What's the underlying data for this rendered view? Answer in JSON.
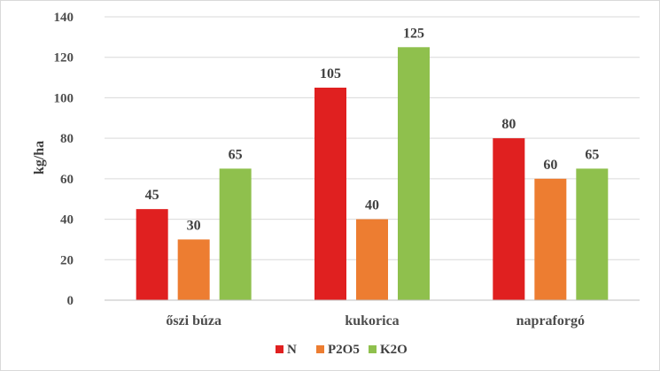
{
  "chart_data": {
    "type": "bar",
    "title": "",
    "xlabel": "",
    "ylabel": "kg/ha",
    "ylim": [
      0,
      140
    ],
    "yticks": [
      0,
      20,
      40,
      60,
      80,
      100,
      120,
      140
    ],
    "grid": true,
    "legend_position": "bottom",
    "categories": [
      "őszi búza",
      "kukorica",
      "napraforgó"
    ],
    "series": [
      {
        "name": "N",
        "color": "#e02020",
        "values": [
          45,
          105,
          80
        ]
      },
      {
        "name": "P2O5",
        "color": "#ed7d31",
        "values": [
          30,
          40,
          60
        ]
      },
      {
        "name": "K2O",
        "color": "#8fc04d",
        "values": [
          65,
          125,
          65
        ]
      }
    ]
  }
}
